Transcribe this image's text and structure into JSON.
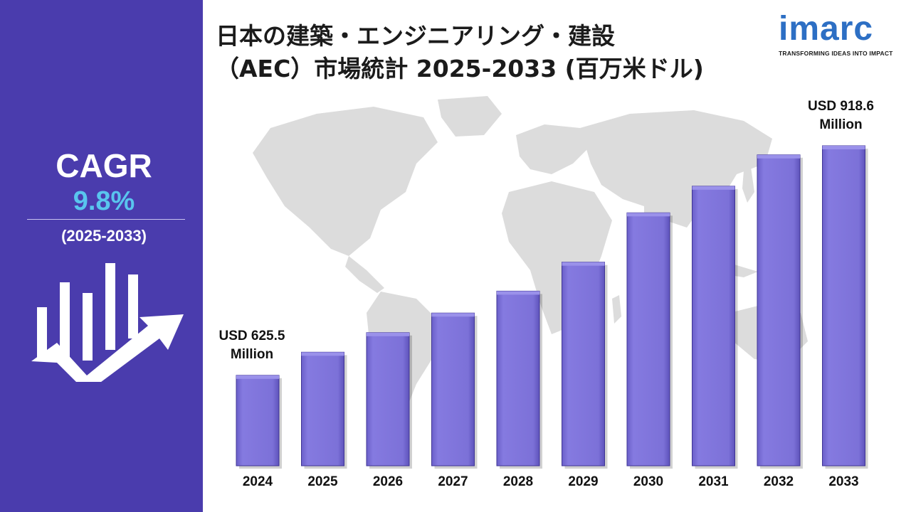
{
  "title": {
    "line1": "日本の建築・エンジニアリング・建設",
    "line2": "（AEC）市場統計 2025-2033 (百万米ドル)"
  },
  "logo": {
    "word": "imarc",
    "tagline": "TRANSFORMING IDEAS INTO IMPACT"
  },
  "cagr": {
    "label": "CAGR",
    "value": "9.8%",
    "period": "(2025-2033)"
  },
  "colors": {
    "panel": "#4a3cad",
    "bar": "#7d72d9",
    "bar_top": "#9a91ea",
    "accent": "#59c5ee"
  },
  "chart_data": {
    "type": "bar",
    "categories": [
      "2024",
      "2025",
      "2026",
      "2027",
      "2028",
      "2029",
      "2030",
      "2031",
      "2032",
      "2033"
    ],
    "values": [
      625.5,
      655,
      680,
      705,
      733,
      770,
      833,
      867,
      907,
      918.6
    ],
    "annotations": [
      {
        "index": 0,
        "line1": "USD 625.5",
        "line2": "Million"
      },
      {
        "index": 9,
        "line1": "USD 918.6",
        "line2": "Million"
      }
    ],
    "ylim": [
      0,
      1000
    ],
    "grid": false,
    "legend": "none"
  }
}
